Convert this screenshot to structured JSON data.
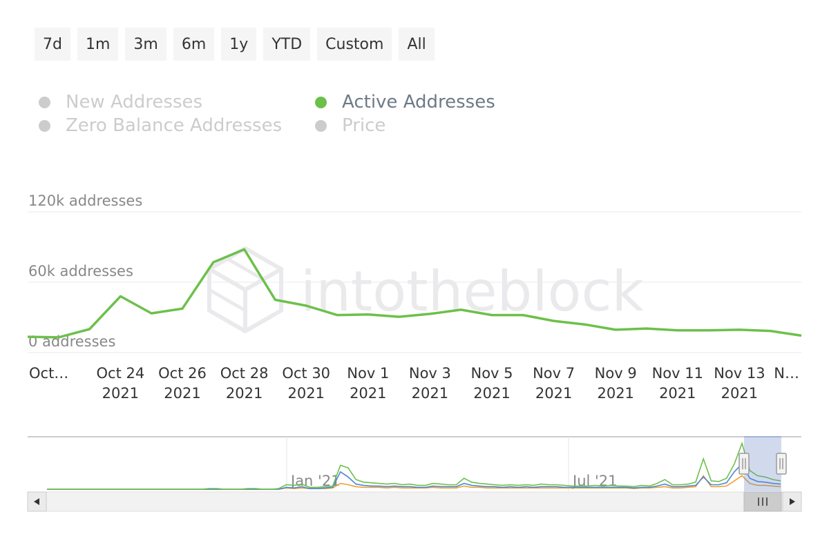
{
  "range_buttons": [
    {
      "label": "7d"
    },
    {
      "label": "1m"
    },
    {
      "label": "3m"
    },
    {
      "label": "6m"
    },
    {
      "label": "1y"
    },
    {
      "label": "YTD"
    },
    {
      "label": "Custom"
    },
    {
      "label": "All"
    }
  ],
  "legend": [
    {
      "label": "New Addresses",
      "active": false,
      "color": "#cccccc"
    },
    {
      "label": "Active Addresses",
      "active": true,
      "color": "#6cc04a"
    },
    {
      "label": "Zero Balance Addresses",
      "active": false,
      "color": "#cccccc"
    },
    {
      "label": "Price",
      "active": false,
      "color": "#cccccc"
    }
  ],
  "watermark": "intotheblock",
  "colors": {
    "active_line": "#6cc04a",
    "nav_blue": "#4a86d6",
    "nav_orange": "#f0a030",
    "grid": "#eaeaea",
    "label_inactive": "#cccccc",
    "label_active": "#6d7a86"
  },
  "chart_data": {
    "type": "line",
    "series": [
      {
        "name": "Active Addresses",
        "values": [
          13500,
          13000,
          20000,
          48000,
          33500,
          37500,
          77000,
          88000,
          45000,
          40000,
          32000,
          32500,
          30500,
          33000,
          36500,
          32000,
          32000,
          27000,
          24000,
          19500,
          20500,
          19000,
          19000,
          19500,
          18500,
          14500
        ]
      }
    ],
    "x": [
      "2021-10-21",
      "2021-10-22",
      "2021-10-23",
      "2021-10-24",
      "2021-10-25",
      "2021-10-26",
      "2021-10-27",
      "2021-10-28",
      "2021-10-29",
      "2021-10-30",
      "2021-10-31",
      "2021-11-01",
      "2021-11-02",
      "2021-11-03",
      "2021-11-04",
      "2021-11-05",
      "2021-11-06",
      "2021-11-07",
      "2021-11-08",
      "2021-11-09",
      "2021-11-10",
      "2021-11-11",
      "2021-11-12",
      "2021-11-13",
      "2021-11-14",
      "2021-11-15"
    ],
    "ylim": [
      0,
      120000
    ],
    "y_ticks": [
      "0 addresses",
      "60k addresses",
      "120k addresses"
    ],
    "x_ticks": [
      {
        "line1": "Oct…",
        "line2": ""
      },
      {
        "line1": "Oct 24",
        "line2": "2021"
      },
      {
        "line1": "Oct 26",
        "line2": "2021"
      },
      {
        "line1": "Oct 28",
        "line2": "2021"
      },
      {
        "line1": "Oct 30",
        "line2": "2021"
      },
      {
        "line1": "Nov 1",
        "line2": "2021"
      },
      {
        "line1": "Nov 3",
        "line2": "2021"
      },
      {
        "line1": "Nov 5",
        "line2": "2021"
      },
      {
        "line1": "Nov 7",
        "line2": "2021"
      },
      {
        "line1": "Nov 9",
        "line2": "2021"
      },
      {
        "line1": "Nov 11",
        "line2": "2021"
      },
      {
        "line1": "Nov 13",
        "line2": "2021"
      },
      {
        "line1": "N…",
        "line2": ""
      }
    ],
    "grid": true,
    "navigator": {
      "labels": [
        "Jan '21",
        "Jul '21"
      ],
      "series": [
        {
          "color_key": "active_line",
          "values": [
            1,
            1,
            1,
            1,
            1,
            1,
            1,
            1,
            1,
            1,
            1,
            1,
            1,
            1,
            1,
            1,
            1,
            1,
            1,
            1,
            1,
            2,
            2,
            1,
            1,
            1,
            2,
            2,
            1,
            1,
            2,
            8,
            7,
            9,
            4,
            4,
            5,
            6,
            38,
            34,
            16,
            12,
            11,
            10,
            9,
            10,
            8,
            9,
            7,
            7,
            10,
            9,
            8,
            8,
            18,
            12,
            10,
            9,
            8,
            7,
            8,
            7,
            8,
            7,
            9,
            8,
            8,
            7,
            6,
            6,
            6,
            7,
            6,
            7,
            6,
            6,
            5,
            7,
            6,
            10,
            16,
            8,
            8,
            9,
            12,
            48,
            14,
            13,
            18,
            40,
            72,
            30,
            22,
            20,
            16,
            14
          ]
        },
        {
          "color_key": "nav_blue",
          "values": [
            1,
            1,
            1,
            1,
            1,
            1,
            1,
            1,
            1,
            1,
            1,
            1,
            1,
            1,
            1,
            1,
            1,
            1,
            1,
            1,
            1,
            1,
            1,
            1,
            1,
            1,
            1,
            1,
            1,
            1,
            1,
            4,
            3,
            5,
            2,
            2,
            3,
            4,
            28,
            20,
            9,
            7,
            6,
            6,
            5,
            6,
            5,
            5,
            4,
            4,
            6,
            5,
            5,
            5,
            10,
            7,
            6,
            5,
            5,
            4,
            5,
            4,
            5,
            4,
            5,
            5,
            5,
            4,
            4,
            4,
            4,
            4,
            4,
            4,
            4,
            4,
            3,
            4,
            4,
            6,
            9,
            5,
            5,
            6,
            7,
            20,
            8,
            8,
            11,
            28,
            40,
            18,
            13,
            12,
            10,
            9
          ]
        },
        {
          "color_key": "nav_orange",
          "values": [
            1,
            1,
            1,
            1,
            1,
            1,
            1,
            1,
            1,
            1,
            1,
            1,
            1,
            1,
            1,
            1,
            1,
            1,
            1,
            1,
            1,
            1,
            1,
            1,
            1,
            1,
            1,
            1,
            1,
            1,
            1,
            3,
            2,
            3,
            2,
            2,
            2,
            3,
            10,
            8,
            5,
            4,
            4,
            4,
            3,
            4,
            3,
            3,
            3,
            3,
            4,
            3,
            3,
            3,
            6,
            4,
            4,
            3,
            3,
            3,
            3,
            3,
            3,
            3,
            3,
            3,
            3,
            3,
            3,
            3,
            3,
            3,
            3,
            3,
            3,
            3,
            2,
            3,
            3,
            4,
            5,
            3,
            3,
            4,
            5,
            22,
            5,
            5,
            6,
            14,
            22,
            10,
            7,
            7,
            6,
            5
          ]
        }
      ]
    }
  }
}
